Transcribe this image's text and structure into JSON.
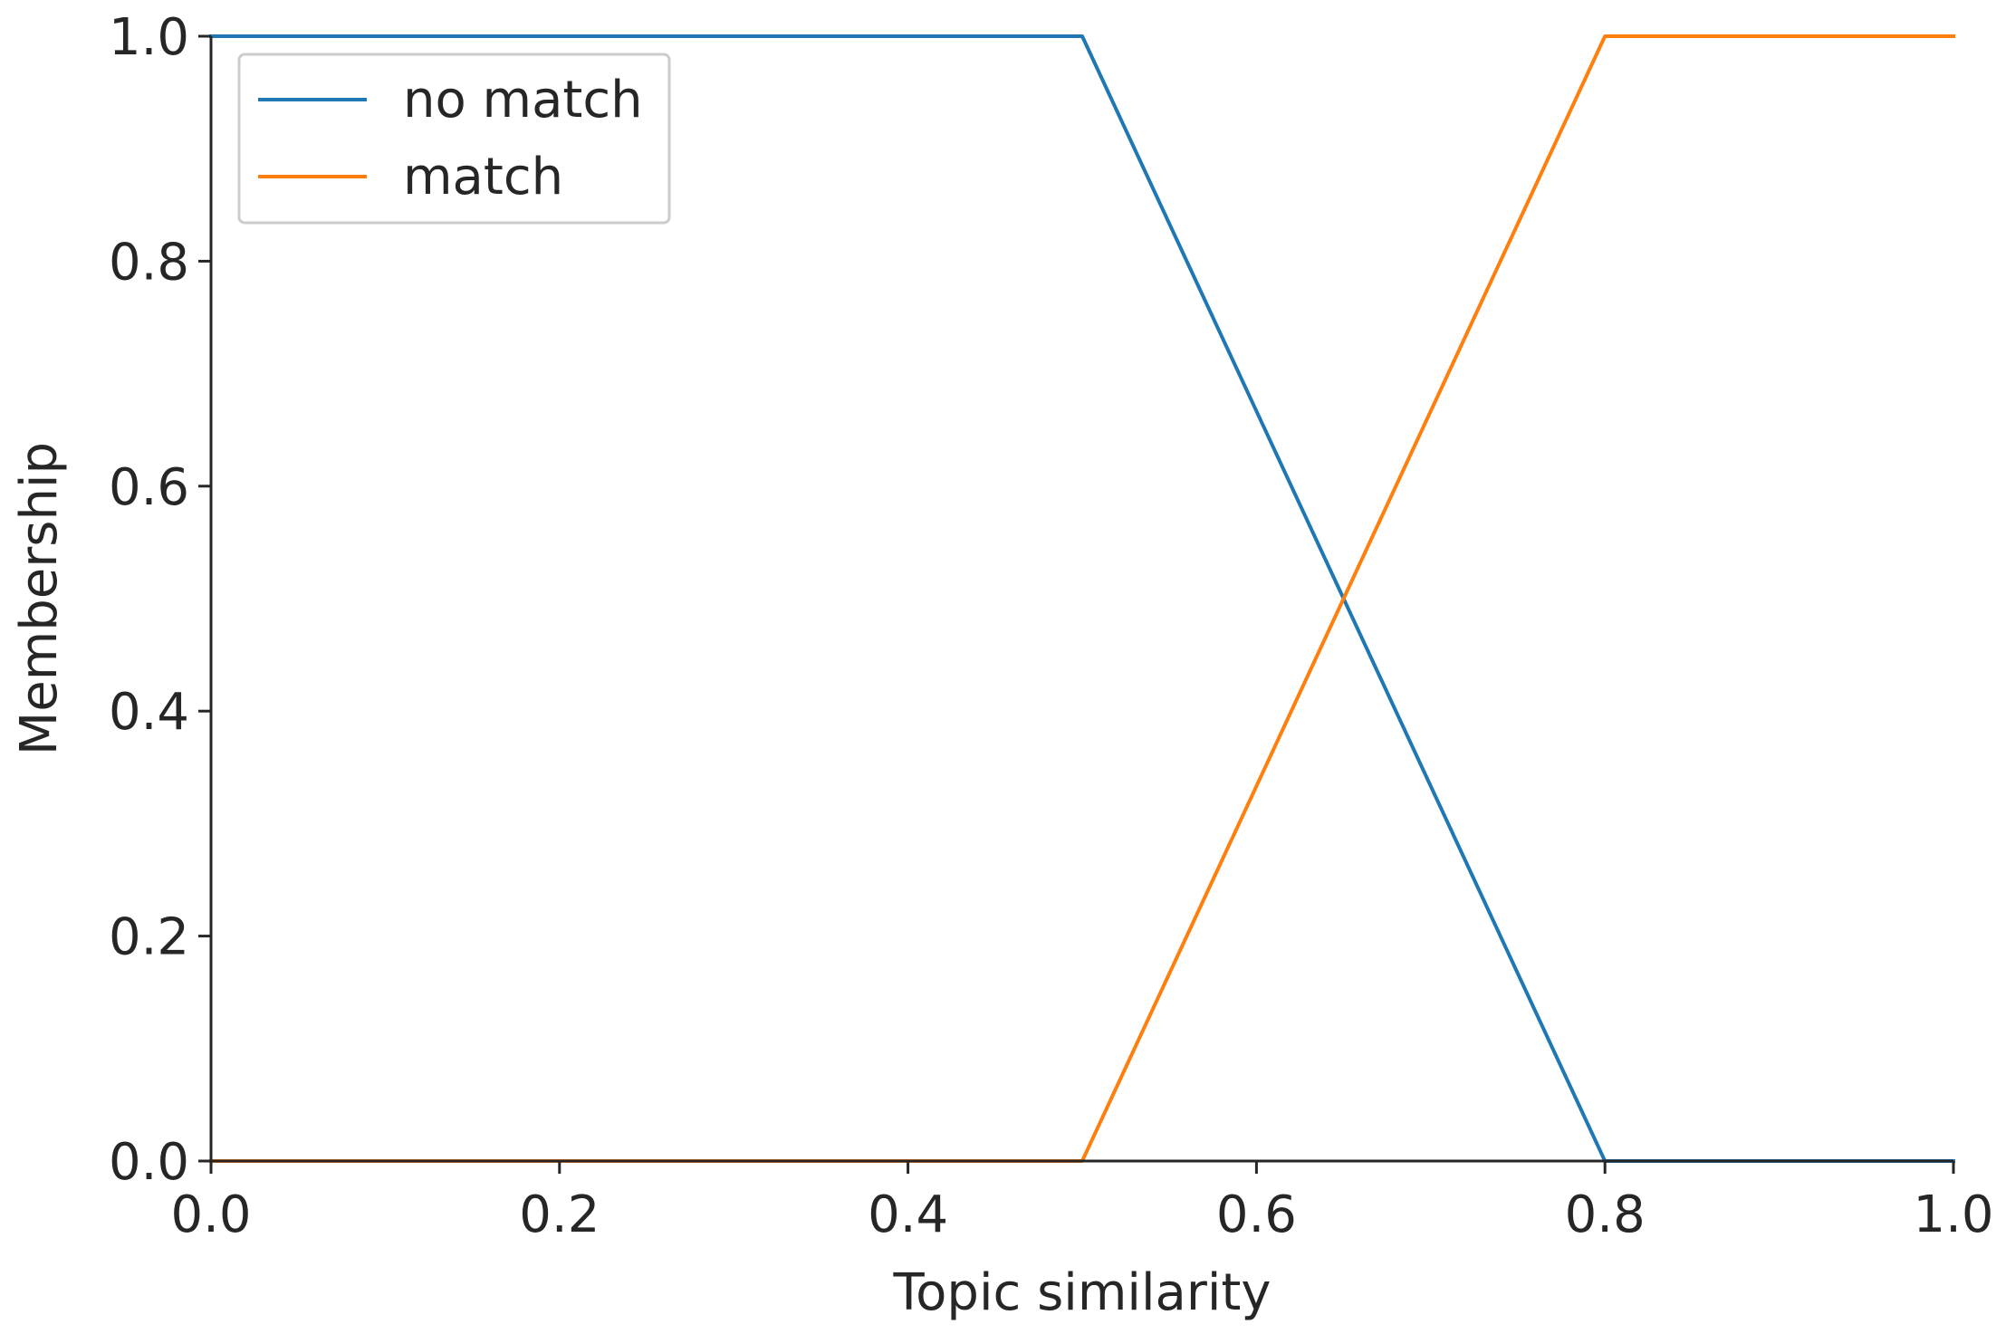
{
  "chart_data": {
    "type": "line",
    "title": "",
    "xlabel": "Topic similarity",
    "ylabel": "Membership",
    "xlim": [
      0.0,
      1.0
    ],
    "ylim": [
      0.0,
      1.0
    ],
    "x_ticks": [
      "0.0",
      "0.2",
      "0.4",
      "0.6",
      "0.8",
      "1.0"
    ],
    "y_ticks": [
      "0.0",
      "0.2",
      "0.4",
      "0.6",
      "0.8",
      "1.0"
    ],
    "grid": false,
    "legend_position": "top-left",
    "series": [
      {
        "name": "no match",
        "color": "#1f77b4",
        "points": [
          [
            0.0,
            1.0
          ],
          [
            0.5,
            1.0
          ],
          [
            0.8,
            0.0
          ],
          [
            1.0,
            0.0
          ]
        ]
      },
      {
        "name": "match",
        "color": "#ff7f0e",
        "points": [
          [
            0.0,
            0.0
          ],
          [
            0.5,
            0.0
          ],
          [
            0.8,
            1.0
          ],
          [
            1.0,
            1.0
          ]
        ]
      }
    ]
  }
}
